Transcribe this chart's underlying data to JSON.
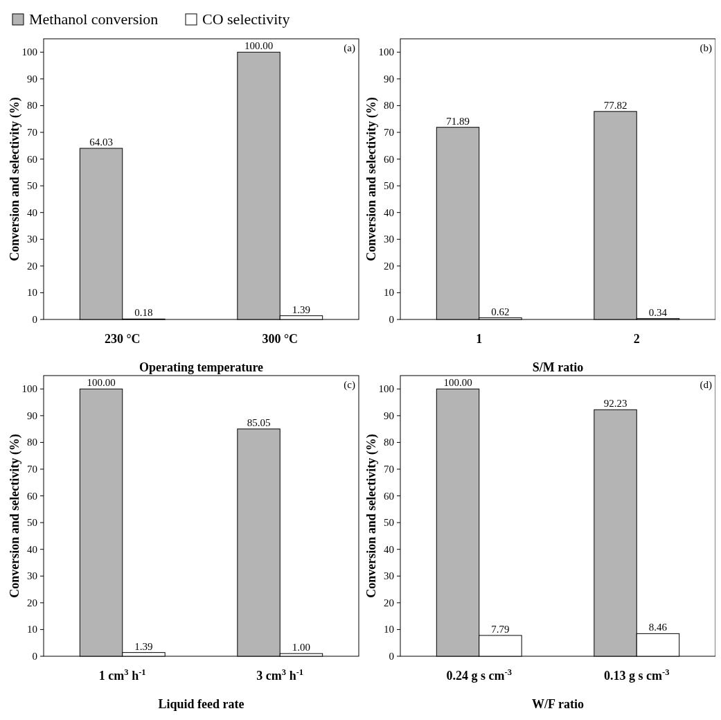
{
  "chart_data": [
    {
      "type": "bar",
      "xlabel": "Operating temperature",
      "ylabel": "Conversion and selectivity (%)",
      "categories": [
        "230 °C",
        "300 °C"
      ],
      "series": [
        {
          "name": "Methanol conversion",
          "color": "#b4b4b4",
          "values": [
            64.03,
            100.0
          ],
          "value_labels": [
            "64.03",
            "100.00"
          ]
        },
        {
          "name": "CO selectivity",
          "color": "#ffffff",
          "values": [
            0.18,
            1.39
          ],
          "value_labels": [
            "0.18",
            "1.39"
          ]
        }
      ],
      "ylim": [
        0,
        105
      ],
      "yticks": [
        0,
        10,
        20,
        30,
        40,
        50,
        60,
        70,
        80,
        90,
        100
      ],
      "legend": "top",
      "annotations": [
        "(a)"
      ]
    },
    {
      "type": "bar",
      "xlabel": "S/M ratio",
      "ylabel": "Conversion and selectivity (%)",
      "categories": [
        "1",
        "2"
      ],
      "series": [
        {
          "color": "#b4b4b4",
          "values": [
            71.89,
            77.82
          ],
          "value_labels": [
            "71.89",
            "77.82"
          ]
        },
        {
          "color": "#ffffff",
          "values": [
            0.62,
            0.34
          ],
          "value_labels": [
            "0.62",
            "0.34"
          ]
        }
      ],
      "ylim": [
        0,
        105
      ],
      "yticks": [
        0,
        10,
        20,
        30,
        40,
        50,
        60,
        70,
        80,
        90,
        100
      ],
      "annotations": [
        "(b)"
      ]
    },
    {
      "type": "bar",
      "xlabel": "Liquid feed rate",
      "ylabel": "Conversion and selectivity (%)",
      "categories": [
        "1 cm$^{3}$ h$^{-1}$",
        "3 cm$^{3}$ h$^{-1}$"
      ],
      "series": [
        {
          "color": "#b4b4b4",
          "values": [
            100.0,
            85.05
          ],
          "value_labels": [
            "100.00",
            "85.05"
          ]
        },
        {
          "color": "#ffffff",
          "values": [
            1.39,
            1.0
          ],
          "value_labels": [
            "1.39",
            "1.00"
          ]
        }
      ],
      "ylim": [
        0,
        105
      ],
      "yticks": [
        0,
        10,
        20,
        30,
        40,
        50,
        60,
        70,
        80,
        90,
        100
      ],
      "annotations": [
        "(c)"
      ]
    },
    {
      "type": "bar",
      "xlabel": "W/F ratio",
      "ylabel": "Conversion and selectivity (%)",
      "categories": [
        "0.24 g s cm$^{-3}$",
        "0.13 g s cm$^{-3}$"
      ],
      "series": [
        {
          "color": "#b4b4b4",
          "values": [
            100.0,
            92.23
          ],
          "value_labels": [
            "100.00",
            "92.23"
          ]
        },
        {
          "color": "#ffffff",
          "values": [
            7.79,
            8.46
          ],
          "value_labels": [
            "7.79",
            "8.46"
          ]
        }
      ],
      "ylim": [
        0,
        105
      ],
      "yticks": [
        0,
        10,
        20,
        30,
        40,
        50,
        60,
        70,
        80,
        90,
        100
      ],
      "annotations": [
        "(d)"
      ]
    }
  ]
}
